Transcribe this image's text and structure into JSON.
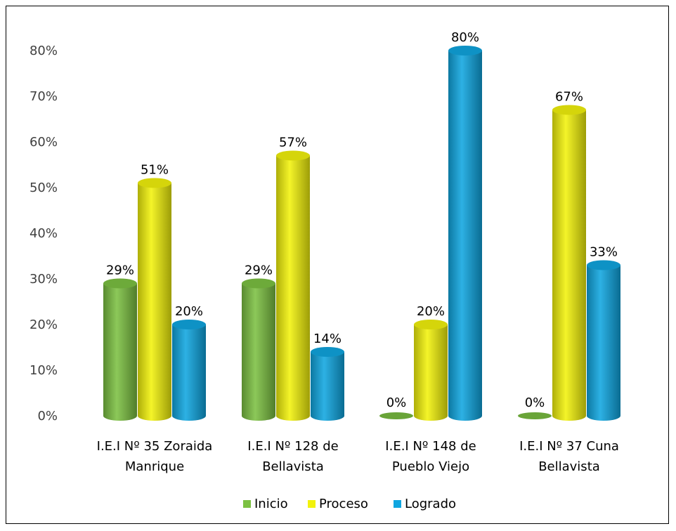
{
  "chart_data": {
    "type": "bar",
    "title": "",
    "xlabel": "",
    "ylabel": "",
    "ylim": [
      0,
      0.8
    ],
    "yticks": [
      "0%",
      "10%",
      "20%",
      "30%",
      "40%",
      "50%",
      "60%",
      "70%",
      "80%"
    ],
    "categories": [
      [
        "I.E.I Nº 35 Zoraida",
        "Manrique"
      ],
      [
        "I.E.I Nº 128 de",
        "Bellavista"
      ],
      [
        "I.E.I Nº 148 de",
        "Pueblo Viejo"
      ],
      [
        "I.E.I Nº 37 Cuna",
        "Bellavista"
      ]
    ],
    "series": [
      {
        "name": "Inicio",
        "color": "#7cc142",
        "values": [
          0.29,
          0.29,
          0.0,
          0.0
        ],
        "labels": [
          "29%",
          "29%",
          "0%",
          "0%"
        ]
      },
      {
        "name": "Proceso",
        "color": "#f2f20c",
        "values": [
          0.51,
          0.57,
          0.2,
          0.67
        ],
        "labels": [
          "51%",
          "57%",
          "20%",
          "67%"
        ]
      },
      {
        "name": "Logrado",
        "color": "#10a6e0",
        "values": [
          0.2,
          0.14,
          0.8,
          0.33
        ],
        "labels": [
          "20%",
          "14%",
          "80%",
          "33%"
        ]
      }
    ],
    "grid": false,
    "legend_position": "bottom",
    "style": "3d-cylinder"
  }
}
